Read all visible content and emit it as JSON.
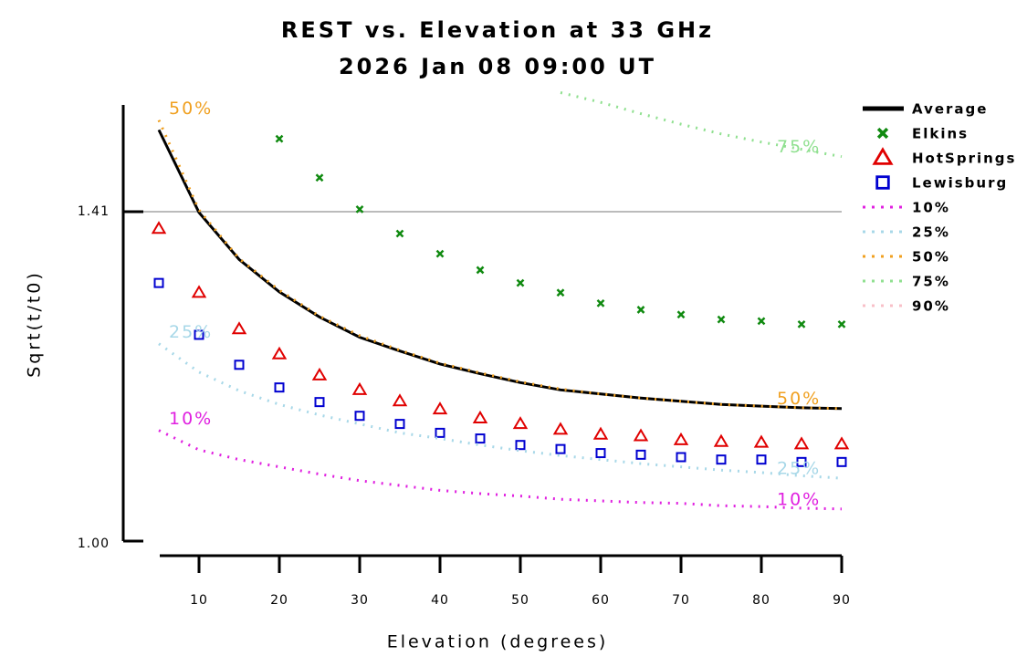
{
  "chart_data": {
    "type": "line",
    "title": "REST vs. Elevation at 33 GHz",
    "subtitle": "2026 Jan 08 09:00 UT",
    "x_label": "Elevation (degrees)",
    "y_label": "Sqrt(t/t0)",
    "x": [
      5,
      10,
      15,
      20,
      25,
      30,
      35,
      40,
      45,
      50,
      55,
      60,
      65,
      70,
      75,
      80,
      85,
      90
    ],
    "xlim": [
      5,
      90
    ],
    "xticks": [
      10,
      20,
      30,
      40,
      50,
      60,
      70,
      80,
      90
    ],
    "ylim": [
      1.0,
      1.54
    ],
    "yticks": [
      {
        "value": 1.0,
        "label": "1.00"
      },
      1.41
    ],
    "grid": true,
    "legend": "right",
    "series": [
      {
        "name": "Average",
        "color": "#000000",
        "marker": "line",
        "values": [
          1.511,
          1.409,
          1.351,
          1.311,
          1.28,
          1.255,
          1.238,
          1.222,
          1.21,
          1.199,
          1.19,
          1.185,
          1.18,
          1.176,
          1.172,
          1.17,
          1.168,
          1.167
        ]
      },
      {
        "name": "Elkins",
        "color": "#108a10",
        "marker": "x",
        "values": [
          null,
          null,
          null,
          1.5,
          1.452,
          1.413,
          1.383,
          1.358,
          1.338,
          1.322,
          1.31,
          1.297,
          1.289,
          1.283,
          1.277,
          1.275,
          1.271,
          1.271
        ]
      },
      {
        "name": "HotSprings",
        "color": "#e00000",
        "marker": "triangle",
        "values": [
          1.389,
          1.31,
          1.265,
          1.234,
          1.208,
          1.19,
          1.176,
          1.166,
          1.155,
          1.148,
          1.141,
          1.135,
          1.133,
          1.128,
          1.126,
          1.125,
          1.123,
          1.123
        ]
      },
      {
        "name": "Lewisburg",
        "color": "#0000d0",
        "marker": "square",
        "values": [
          1.322,
          1.258,
          1.221,
          1.193,
          1.175,
          1.158,
          1.148,
          1.137,
          1.13,
          1.122,
          1.117,
          1.112,
          1.11,
          1.107,
          1.104,
          1.104,
          1.101,
          1.101
        ]
      },
      {
        "name": "10%",
        "color": "#e020e0",
        "marker": "dotted",
        "values": [
          1.14,
          1.116,
          1.104,
          1.095,
          1.086,
          1.078,
          1.072,
          1.066,
          1.062,
          1.059,
          1.055,
          1.053,
          1.051,
          1.05,
          1.047,
          1.046,
          1.044,
          1.043
        ]
      },
      {
        "name": "25%",
        "color": "#a8d8e8",
        "marker": "dotted",
        "values": [
          1.247,
          1.212,
          1.189,
          1.172,
          1.159,
          1.148,
          1.137,
          1.13,
          1.122,
          1.115,
          1.109,
          1.104,
          1.099,
          1.095,
          1.091,
          1.088,
          1.084,
          1.081
        ]
      },
      {
        "name": "50%",
        "color": "#f0a020",
        "marker": "dotted",
        "values": [
          1.523,
          1.412,
          1.352,
          1.313,
          1.281,
          1.257,
          1.239,
          1.223,
          1.211,
          1.2,
          1.191,
          1.185,
          1.18,
          1.176,
          1.172,
          1.17,
          1.168,
          1.167
        ]
      },
      {
        "name": "75%",
        "color": "#90e090",
        "marker": "dotted",
        "values": [
          null,
          null,
          null,
          null,
          null,
          null,
          null,
          null,
          null,
          null,
          1.557,
          1.545,
          1.531,
          1.518,
          1.506,
          1.496,
          1.487,
          1.478
        ]
      },
      {
        "name": "90%",
        "color": "#f8c0c8",
        "marker": "dotted",
        "values": [
          null,
          null,
          null,
          null,
          null,
          null,
          null,
          null,
          null,
          null,
          null,
          null,
          null,
          null,
          null,
          null,
          null,
          null
        ]
      }
    ]
  }
}
